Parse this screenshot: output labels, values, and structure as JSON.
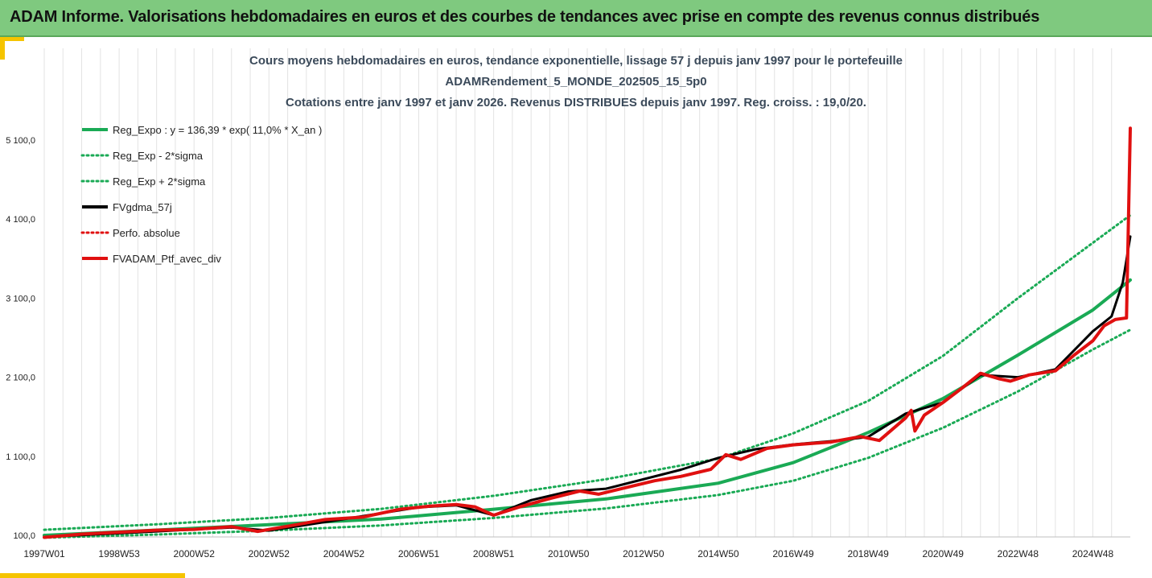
{
  "header": {
    "title": "ADAM Informe. Valorisations hebdomadaires en euros et des courbes de tendances avec prise en compte des revenus connus distribués"
  },
  "colors": {
    "header_bg": "#7fc97f",
    "accent": "#f5c400",
    "reg_green": "#1aaa55",
    "black_line": "#000000",
    "red_line": "#e01010"
  },
  "chart_data": {
    "type": "line",
    "title": [
      "Cours moyens hebdomadaires  en euros, tendance exponentielle, lissage 57 j depuis janv 1997 pour le portefeuille",
      "ADAMRendement_5_MONDE_202505_15_5p0",
      "Cotations entre janv 1997 et janv 2026. Revenus DISTRIBUES depuis janv 1997. Reg. croiss. : 19,0/20."
    ],
    "xlabel": "",
    "ylabel": "",
    "x_range": [
      1997.0,
      2026.0
    ],
    "ylim": [
      100,
      5300
    ],
    "y_ticks": [
      {
        "value": 100,
        "label": "100,0"
      },
      {
        "value": 1100,
        "label": "1 100,0"
      },
      {
        "value": 2100,
        "label": "2 100,0"
      },
      {
        "value": 3100,
        "label": "3 100,0"
      },
      {
        "value": 4100,
        "label": "4 100,0"
      },
      {
        "value": 5100,
        "label": "5 100,0"
      }
    ],
    "x_ticks": [
      {
        "value": 1997.0,
        "label": "1997W01"
      },
      {
        "value": 1999.0,
        "label": "1998W53"
      },
      {
        "value": 2001.0,
        "label": "2000W52"
      },
      {
        "value": 2003.0,
        "label": "2002W52"
      },
      {
        "value": 2005.0,
        "label": "2004W52"
      },
      {
        "value": 2007.0,
        "label": "2006W51"
      },
      {
        "value": 2009.0,
        "label": "2008W51"
      },
      {
        "value": 2011.0,
        "label": "2010W50"
      },
      {
        "value": 2013.0,
        "label": "2012W50"
      },
      {
        "value": 2015.0,
        "label": "2014W50"
      },
      {
        "value": 2017.0,
        "label": "2016W49"
      },
      {
        "value": 2019.0,
        "label": "2018W49"
      },
      {
        "value": 2021.0,
        "label": "2020W49"
      },
      {
        "value": 2023.0,
        "label": "2022W48"
      },
      {
        "value": 2025.0,
        "label": "2024W48"
      }
    ],
    "grid": "vertical",
    "legend": "top-left",
    "series": [
      {
        "name": "Reg_Expo : y = 136,39 * exp( 11,0% *  X_an )",
        "color": "#1aaa55",
        "style": "solid",
        "points": [
          [
            1997,
            100
          ],
          [
            2000,
            166
          ],
          [
            2003,
            235
          ],
          [
            2006,
            306
          ],
          [
            2009,
            430
          ],
          [
            2012,
            560
          ],
          [
            2015,
            760
          ],
          [
            2017,
            1020
          ],
          [
            2019,
            1400
          ],
          [
            2021,
            1830
          ],
          [
            2023,
            2380
          ],
          [
            2025,
            2950
          ],
          [
            2026,
            3330
          ]
        ]
      },
      {
        "name": "Reg_Exp - 2*sigma",
        "color": "#1aaa55",
        "style": "dotted",
        "points": [
          [
            1997,
            70
          ],
          [
            2000,
            110
          ],
          [
            2003,
            160
          ],
          [
            2006,
            225
          ],
          [
            2009,
            320
          ],
          [
            2012,
            440
          ],
          [
            2015,
            610
          ],
          [
            2017,
            790
          ],
          [
            2019,
            1080
          ],
          [
            2021,
            1460
          ],
          [
            2023,
            1920
          ],
          [
            2025,
            2450
          ],
          [
            2026,
            2700
          ]
        ]
      },
      {
        "name": "Reg_Exp + 2*sigma",
        "color": "#1aaa55",
        "style": "dotted",
        "points": [
          [
            1997,
            170
          ],
          [
            2000,
            240
          ],
          [
            2003,
            320
          ],
          [
            2006,
            435
          ],
          [
            2009,
            600
          ],
          [
            2012,
            810
          ],
          [
            2015,
            1070
          ],
          [
            2017,
            1390
          ],
          [
            2019,
            1800
          ],
          [
            2021,
            2370
          ],
          [
            2023,
            3100
          ],
          [
            2025,
            3800
          ],
          [
            2026,
            4150
          ]
        ]
      },
      {
        "name": "FVgdma_57j",
        "color": "#000000",
        "style": "solid",
        "points": [
          [
            1997,
            80
          ],
          [
            2000,
            150
          ],
          [
            2002,
            200
          ],
          [
            2003,
            160
          ],
          [
            2005,
            305
          ],
          [
            2007,
            455
          ],
          [
            2008,
            480
          ],
          [
            2009,
            355
          ],
          [
            2010,
            545
          ],
          [
            2011,
            655
          ],
          [
            2012,
            690
          ],
          [
            2014,
            930
          ],
          [
            2015,
            1080
          ],
          [
            2016,
            1190
          ],
          [
            2017,
            1250
          ],
          [
            2018,
            1290
          ],
          [
            2019,
            1345
          ],
          [
            2020,
            1640
          ],
          [
            2021,
            1780
          ],
          [
            2022,
            2130
          ],
          [
            2023,
            2100
          ],
          [
            2024,
            2200
          ],
          [
            2025,
            2680
          ],
          [
            2025.5,
            2870
          ],
          [
            2025.8,
            3300
          ],
          [
            2026,
            3880
          ]
        ]
      },
      {
        "name": "Perfo. absolue",
        "color": "#e01010",
        "style": "dotted",
        "points": []
      },
      {
        "name": "FVADAM_Ptf_avec_div",
        "color": "#e01010",
        "style": "solid",
        "points": [
          [
            1997,
            75
          ],
          [
            1998,
            115
          ],
          [
            1999,
            140
          ],
          [
            2000,
            165
          ],
          [
            2001,
            175
          ],
          [
            2002,
            210
          ],
          [
            2002.7,
            150
          ],
          [
            2003.5,
            215
          ],
          [
            2004.5,
            300
          ],
          [
            2005.5,
            330
          ],
          [
            2006.5,
            430
          ],
          [
            2007.3,
            470
          ],
          [
            2008,
            490
          ],
          [
            2008.5,
            460
          ],
          [
            2009,
            355
          ],
          [
            2009.7,
            460
          ],
          [
            2010.5,
            565
          ],
          [
            2011.3,
            660
          ],
          [
            2011.8,
            620
          ],
          [
            2012.5,
            700
          ],
          [
            2013.3,
            790
          ],
          [
            2014,
            845
          ],
          [
            2014.8,
            935
          ],
          [
            2015.2,
            1120
          ],
          [
            2015.6,
            1060
          ],
          [
            2016.3,
            1200
          ],
          [
            2017,
            1245
          ],
          [
            2018,
            1280
          ],
          [
            2018.8,
            1350
          ],
          [
            2019.3,
            1300
          ],
          [
            2020,
            1585
          ],
          [
            2020.15,
            1680
          ],
          [
            2020.25,
            1420
          ],
          [
            2020.5,
            1620
          ],
          [
            2021,
            1780
          ],
          [
            2021.5,
            1960
          ],
          [
            2022,
            2150
          ],
          [
            2022.5,
            2080
          ],
          [
            2022.8,
            2050
          ],
          [
            2023.3,
            2130
          ],
          [
            2024,
            2180
          ],
          [
            2024.5,
            2380
          ],
          [
            2025,
            2560
          ],
          [
            2025.3,
            2750
          ],
          [
            2025.6,
            2830
          ],
          [
            2025.9,
            2850
          ],
          [
            2026,
            5250
          ]
        ]
      }
    ]
  }
}
